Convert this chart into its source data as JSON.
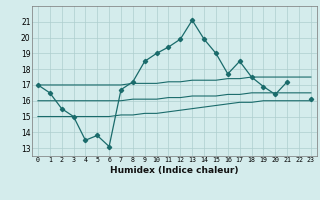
{
  "x": [
    0,
    1,
    2,
    3,
    4,
    5,
    6,
    7,
    8,
    9,
    10,
    11,
    12,
    13,
    14,
    15,
    16,
    17,
    18,
    19,
    20,
    21,
    22,
    23
  ],
  "y_main": [
    17.0,
    16.5,
    15.5,
    15.0,
    13.5,
    13.8,
    13.1,
    16.7,
    17.2,
    18.5,
    19.0,
    19.4,
    19.9,
    21.1,
    19.9,
    19.0,
    17.7,
    18.5,
    17.5,
    16.9,
    16.4,
    17.2,
    null,
    16.1
  ],
  "y_top": [
    17.0,
    17.0,
    17.0,
    17.0,
    17.0,
    17.0,
    17.0,
    17.0,
    17.1,
    17.1,
    17.1,
    17.2,
    17.2,
    17.3,
    17.3,
    17.3,
    17.4,
    17.4,
    17.5,
    17.5,
    17.5,
    17.5,
    17.5,
    17.5
  ],
  "y_mid": [
    16.0,
    16.0,
    16.0,
    16.0,
    16.0,
    16.0,
    16.0,
    16.0,
    16.1,
    16.1,
    16.1,
    16.2,
    16.2,
    16.3,
    16.3,
    16.3,
    16.4,
    16.4,
    16.5,
    16.5,
    16.5,
    16.5,
    16.5,
    16.5
  ],
  "y_low": [
    15.0,
    15.0,
    15.0,
    15.0,
    15.0,
    15.0,
    15.0,
    15.1,
    15.1,
    15.2,
    15.2,
    15.3,
    15.4,
    15.5,
    15.6,
    15.7,
    15.8,
    15.9,
    15.9,
    16.0,
    16.0,
    16.0,
    16.0,
    16.0
  ],
  "ylim": [
    12.5,
    22.0
  ],
  "yticks": [
    13,
    14,
    15,
    16,
    17,
    18,
    19,
    20,
    21
  ],
  "xlim": [
    -0.5,
    23.5
  ],
  "xlabel": "Humidex (Indice chaleur)",
  "bg_color": "#d4ecec",
  "line_color": "#1a6b6b",
  "grid_color": "#aecece"
}
